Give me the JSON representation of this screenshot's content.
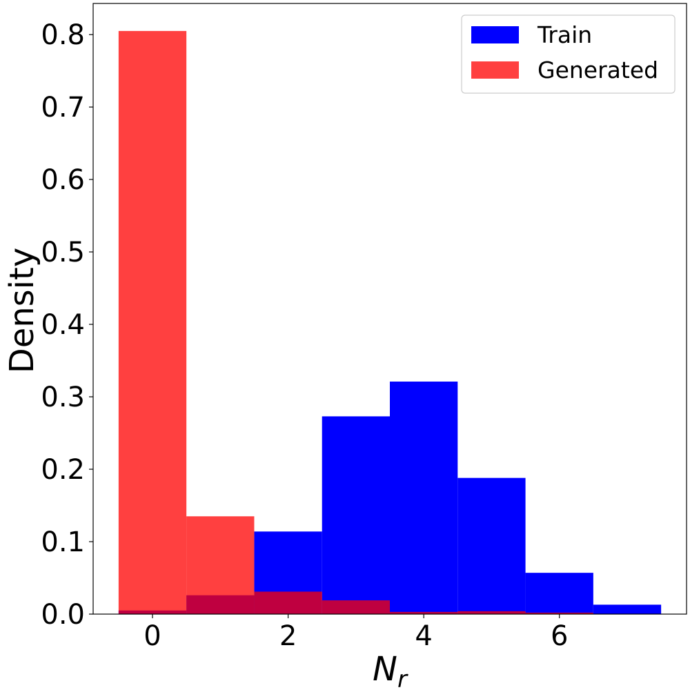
{
  "chart_data": {
    "type": "bar",
    "xlabel_main": "N",
    "xlabel_sub": "r",
    "ylabel": "Density",
    "xlim": [
      -0.875,
      7.875
    ],
    "ylim": [
      0,
      0.843
    ],
    "xticks": [
      0,
      2,
      4,
      6
    ],
    "yticks": [
      0.0,
      0.1,
      0.2,
      0.3,
      0.4,
      0.5,
      0.6,
      0.7,
      0.8
    ],
    "bin_edges": [
      -0.5,
      0.5,
      1.5,
      2.5,
      3.5,
      4.5,
      5.5,
      6.5,
      7.5
    ],
    "legend_position": "top-right",
    "series": [
      {
        "name": "Train",
        "color": "#0000ff",
        "opacity": 1.0,
        "values": [
          0.005,
          0.026,
          0.114,
          0.273,
          0.321,
          0.188,
          0.057,
          0.013
        ]
      },
      {
        "name": "Generated",
        "color": "#ff0000",
        "opacity": 0.75,
        "values": [
          0.805,
          0.135,
          0.031,
          0.019,
          0.003,
          0.004,
          0.002,
          0.0
        ]
      }
    ]
  }
}
